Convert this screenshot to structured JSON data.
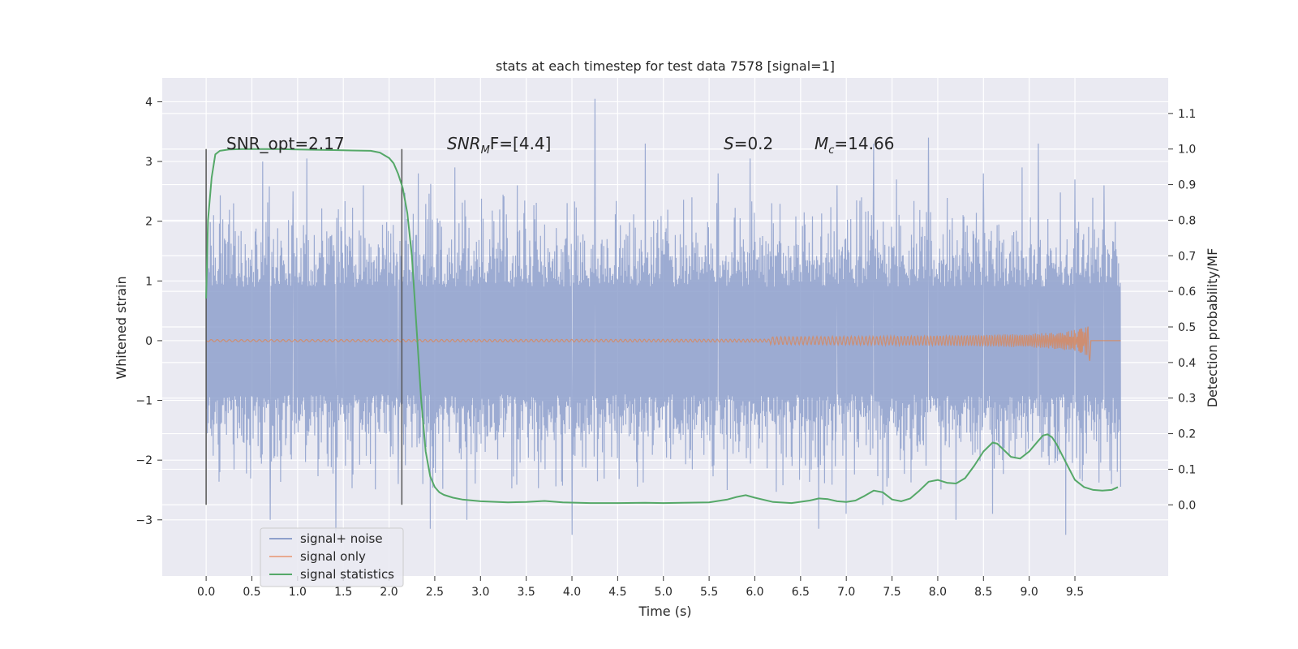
{
  "chart_data": {
    "type": "line",
    "title": "stats at each timestep for test data 7578 [signal=1]",
    "xlabel": "Time (s)",
    "ylabel_left": "Whitened strain",
    "ylabel_right": "Detection probability/MF",
    "xlim": [
      -0.48,
      10.52
    ],
    "ylim_left": [
      -3.94,
      4.4
    ],
    "ylim_right": [
      -0.2,
      1.2
    ],
    "x_ticks": [
      "0.0",
      "0.5",
      "1.0",
      "1.5",
      "2.0",
      "2.5",
      "3.0",
      "3.5",
      "4.0",
      "4.5",
      "5.0",
      "5.5",
      "6.0",
      "6.5",
      "7.0",
      "7.5",
      "8.0",
      "8.5",
      "9.0",
      "9.5"
    ],
    "y_ticks_left": [
      "4",
      "3",
      "2",
      "1",
      "0",
      "−1",
      "−2",
      "−3"
    ],
    "y_ticks_right": [
      "1.1",
      "1.0",
      "0.9",
      "0.8",
      "0.7",
      "0.6",
      "0.5",
      "0.4",
      "0.3",
      "0.2",
      "0.1",
      "0.0"
    ],
    "grid": true,
    "legend_position": "lower-left",
    "annotations": {
      "snr_opt": "SNR_opt=2.17",
      "snr_mf_prefix": "SNR",
      "snr_mf_sub": "M",
      "snr_mf_suffix": "F=[4.4]",
      "s_prefix": "S",
      "s_suffix": "=0.2",
      "mc_prefix": "M",
      "mc_sub": "c",
      "mc_suffix": "=14.66"
    },
    "vlines": [
      0.0,
      2.14
    ],
    "series": [
      {
        "name": "signal+ noise",
        "color": "#8ea0cc",
        "axis": "left",
        "x_range": [
          0.0,
          10.0
        ],
        "typical_range": [
          -1.5,
          1.5
        ],
        "peaks": [
          [
            0.08,
            2.1
          ],
          [
            0.3,
            2.3
          ],
          [
            0.62,
            3.0
          ],
          [
            0.95,
            2.5
          ],
          [
            1.1,
            3.05
          ],
          [
            1.72,
            2.6
          ],
          [
            2.32,
            2.8
          ],
          [
            2.72,
            2.9
          ],
          [
            3.4,
            2.6
          ],
          [
            4.25,
            4.05
          ],
          [
            4.8,
            3.3
          ],
          [
            5.6,
            2.8
          ],
          [
            5.95,
            3.05
          ],
          [
            6.9,
            2.6
          ],
          [
            7.3,
            3.3
          ],
          [
            7.55,
            2.7
          ],
          [
            7.9,
            3.4
          ],
          [
            8.5,
            2.8
          ],
          [
            8.92,
            2.9
          ],
          [
            9.1,
            3.3
          ],
          [
            9.5,
            2.7
          ],
          [
            9.82,
            2.6
          ],
          [
            0.15,
            -2.2
          ],
          [
            0.7,
            -3.0
          ],
          [
            1.42,
            -3.2
          ],
          [
            2.1,
            -2.4
          ],
          [
            2.45,
            -3.15
          ],
          [
            2.85,
            -3.0
          ],
          [
            4.0,
            -3.25
          ],
          [
            5.7,
            -2.5
          ],
          [
            6.7,
            -3.15
          ],
          [
            7.0,
            -2.9
          ],
          [
            7.4,
            -2.75
          ],
          [
            8.2,
            -3.0
          ],
          [
            8.6,
            -2.9
          ],
          [
            9.4,
            -3.25
          ],
          [
            9.9,
            -2.4
          ]
        ]
      },
      {
        "name": "signal only",
        "color": "#dd8452",
        "axis": "left",
        "chirp_end": 9.67,
        "peak_amplitude": 0.4
      },
      {
        "name": "signal statistics",
        "color": "#55a868",
        "axis": "right",
        "x": [
          0.0,
          0.02,
          0.06,
          0.1,
          0.15,
          0.25,
          0.4,
          0.6,
          0.8,
          1.0,
          1.2,
          1.4,
          1.6,
          1.8,
          1.9,
          2.0,
          2.05,
          2.1,
          2.15,
          2.2,
          2.25,
          2.3,
          2.35,
          2.4,
          2.45,
          2.5,
          2.55,
          2.6,
          2.7,
          2.8,
          3.0,
          3.3,
          3.5,
          3.7,
          3.9,
          4.2,
          4.5,
          4.8,
          5.0,
          5.2,
          5.5,
          5.7,
          5.8,
          5.9,
          6.0,
          6.2,
          6.4,
          6.6,
          6.7,
          6.8,
          6.9,
          7.0,
          7.1,
          7.2,
          7.3,
          7.4,
          7.5,
          7.6,
          7.7,
          7.8,
          7.9,
          8.0,
          8.1,
          8.2,
          8.3,
          8.4,
          8.5,
          8.6,
          8.65,
          8.7,
          8.8,
          8.9,
          9.0,
          9.1,
          9.15,
          9.2,
          9.25,
          9.3,
          9.4,
          9.5,
          9.6,
          9.7,
          9.8,
          9.9,
          9.97
        ],
        "y": [
          0.58,
          0.8,
          0.92,
          0.985,
          0.995,
          0.999,
          1.0,
          1.0,
          1.0,
          0.999,
          0.998,
          0.997,
          0.996,
          0.995,
          0.99,
          0.975,
          0.96,
          0.93,
          0.89,
          0.82,
          0.7,
          0.5,
          0.3,
          0.15,
          0.08,
          0.05,
          0.035,
          0.028,
          0.02,
          0.015,
          0.01,
          0.007,
          0.008,
          0.011,
          0.007,
          0.005,
          0.005,
          0.006,
          0.005,
          0.006,
          0.007,
          0.015,
          0.022,
          0.027,
          0.02,
          0.008,
          0.005,
          0.012,
          0.018,
          0.016,
          0.01,
          0.008,
          0.012,
          0.025,
          0.04,
          0.035,
          0.015,
          0.01,
          0.018,
          0.04,
          0.065,
          0.07,
          0.062,
          0.06,
          0.075,
          0.11,
          0.15,
          0.175,
          0.172,
          0.16,
          0.135,
          0.13,
          0.15,
          0.18,
          0.195,
          0.198,
          0.19,
          0.17,
          0.12,
          0.07,
          0.05,
          0.042,
          0.04,
          0.042,
          0.05
        ]
      }
    ]
  }
}
